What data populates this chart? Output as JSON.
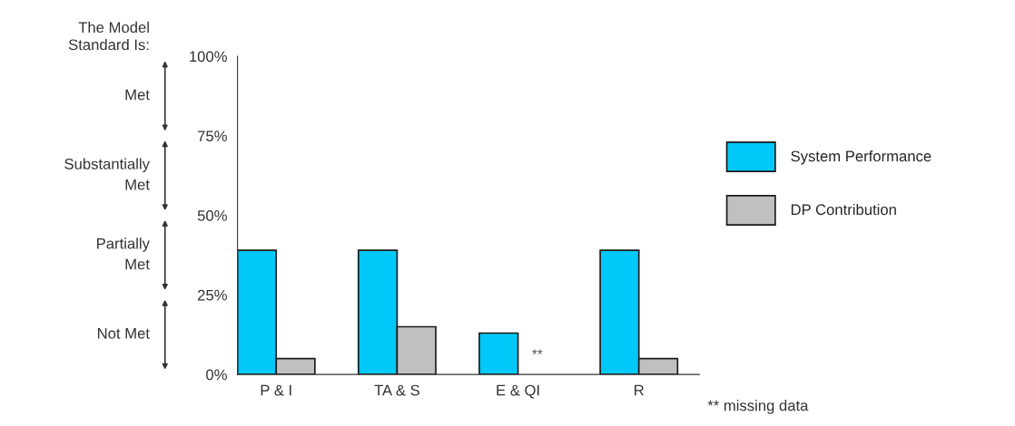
{
  "chart_data": {
    "type": "bar",
    "categories": [
      "P & I",
      "TA & S",
      "E & QI",
      "R"
    ],
    "series": [
      {
        "name": "System Performance",
        "color": "#00c8f8",
        "values": [
          39,
          39,
          13,
          39
        ]
      },
      {
        "name": "DP Contribution",
        "color": "#c0c0c0",
        "values": [
          5,
          15,
          null,
          5
        ]
      }
    ],
    "ylim": [
      0,
      100
    ],
    "yticks": [
      {
        "value": 0,
        "label": "0%"
      },
      {
        "value": 25,
        "label": "25%"
      },
      {
        "value": 50,
        "label": "50%"
      },
      {
        "value": 75,
        "label": "75%"
      },
      {
        "value": 100,
        "label": "100%"
      }
    ],
    "legend": "right",
    "grid": false,
    "annotations": [
      "The Model\nStandard Is:",
      "Met",
      "Substantially\nMet",
      "Partially\nMet",
      "Not Met",
      {
        "text": "**",
        "x": "E & QI",
        "y": 4
      },
      "** missing data"
    ]
  }
}
